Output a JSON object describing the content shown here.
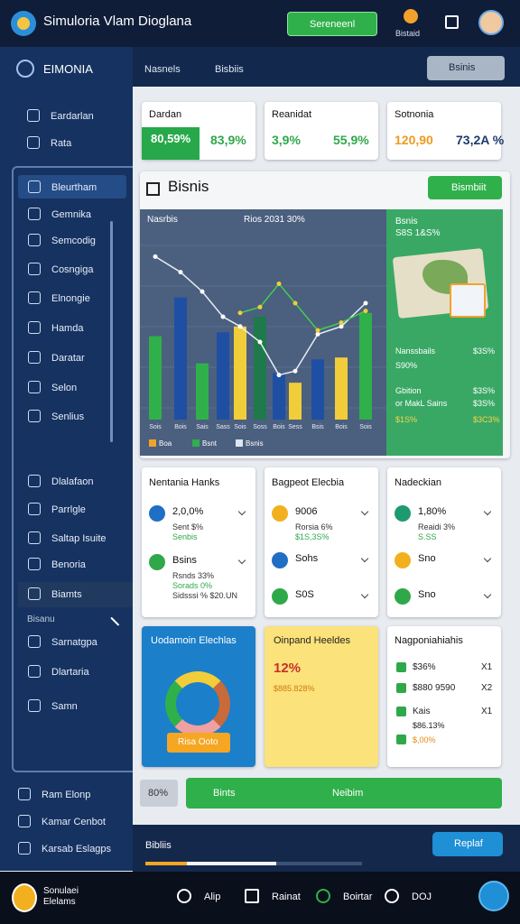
{
  "topbar": {
    "app_title": "Simuloria Vlam Dioglana",
    "button": "Sereneenl",
    "badge": "Bistaid"
  },
  "sidebar": {
    "header": "EIMONIA",
    "top_items": [
      "Eardarlan",
      "Rata"
    ],
    "group_items": [
      "Bleurtham",
      "Gemnika",
      "Semcodig",
      "Cosngiga",
      "Elnongie",
      "Hamda",
      "Daratar",
      "Selon",
      "Senlius"
    ],
    "lower_items": [
      "Dlalafaon",
      "Parrlgle",
      "Saltap Isuite",
      "Benoria",
      "Biamts"
    ],
    "section_label": "Bisanu",
    "section_items": [
      "Sarnatgpa",
      "Dlartaria",
      "Samn"
    ],
    "footer_items": [
      "Ram Elonp",
      "Kamar Cenbot",
      "Karsab Eslagps"
    ]
  },
  "subheader": {
    "tabs": [
      "Nasnels",
      "Bisbiis"
    ],
    "button": "Bsinis"
  },
  "stat_cards": [
    {
      "title": "Dardan",
      "values": [
        "80,59%",
        "83,9%"
      ]
    },
    {
      "title": "Reanidat",
      "values": [
        "3,9%",
        "55,9%"
      ]
    },
    {
      "title": "Sotnonia",
      "values": [
        "120,90",
        "73,2A %"
      ]
    }
  ],
  "chart_panel": {
    "title": "Bisnis",
    "button": "Bismbiit",
    "chart": {
      "label": "Nasrbis",
      "caption": "Rios 2031 30%",
      "categories": [
        "Sois",
        "Bois",
        "Sais",
        "Sass",
        "Sois",
        "Soss",
        "Bois",
        "Sess",
        "Bsis",
        "Bois",
        "Sois"
      ],
      "values": [
        43,
        63,
        29,
        45,
        48,
        53,
        24,
        19,
        31,
        32,
        55
      ],
      "bar_colors": [
        "#2fb04a",
        "#1f4fa3",
        "#2fb04a",
        "#1f4fa3",
        "#f2cd3a",
        "#1e7a4a",
        "#1f4fa3",
        "#f2cd3a",
        "#1f4fa3",
        "#f2cd3a",
        "#2fb04a"
      ],
      "lines": [
        {
          "color": "#e8eef8",
          "values": [
            84,
            76,
            66,
            53,
            48,
            40,
            23,
            25,
            44,
            48,
            60
          ]
        },
        {
          "color": "#3fd04a",
          "values": [
            null,
            null,
            null,
            null,
            55,
            58,
            70,
            60,
            46,
            50,
            56
          ]
        }
      ],
      "ylim": [
        0,
        100
      ],
      "legend": [
        "Boa",
        "Bsnt",
        "Bsnis"
      ]
    },
    "side": {
      "title": "Bsnis",
      "subtitle": "S8S 1&S%",
      "rows": [
        [
          "Nanssbails",
          "$3S%"
        ],
        [
          "S90%"
        ],
        [
          "Gbition",
          "$3S%"
        ],
        [
          "or MakL Sains",
          "$3S%"
        ],
        [
          "$1S%",
          "$3C3%"
        ]
      ]
    }
  },
  "detail_cards": [
    {
      "title": "Nentania Hanks",
      "items": [
        [
          "2,0,0%",
          "Sent $%",
          "Senbis"
        ],
        [
          "Bsins",
          "Rsnds 33%",
          "Sorads 0%",
          "Sidsssi %  $20.UN"
        ]
      ]
    },
    {
      "title": "Bagpeot Elecbia",
      "items": [
        [
          "9006",
          "Rorsia 6%",
          "$1S,3S%"
        ],
        [
          "Sohs"
        ],
        [
          "S0S"
        ]
      ]
    },
    {
      "title": "Nadeckian",
      "items": [
        [
          "1,80%",
          "Reaidi 3%",
          "S.SS"
        ],
        [
          "Sno"
        ],
        [
          "Sno"
        ]
      ]
    }
  ],
  "bottom_cards": {
    "blue": {
      "title": "Uodamoin Elechlas",
      "button": "Risa Ooto"
    },
    "yellow": {
      "title": "Oinpand Heeldes",
      "big": "12%",
      "sub": "$885.828%"
    },
    "white": {
      "title": "Nagponiahiahis",
      "rows": [
        [
          "$36%",
          "X1"
        ],
        [
          "$880 9590",
          "X2"
        ],
        [
          "Kais",
          "X1"
        ],
        [
          "$86.13%"
        ],
        [
          "$,00%"
        ]
      ]
    }
  },
  "action_bar": {
    "percent": "80%",
    "label": "Bints",
    "center": "Neibim"
  },
  "footer": {
    "label": "Bibliis",
    "button": "Replaf"
  },
  "bottom_nav": {
    "logo_text": "Sonulaei Elelams",
    "items": [
      "Alip",
      "Rainat",
      "Boirtar",
      "DOJ"
    ]
  }
}
